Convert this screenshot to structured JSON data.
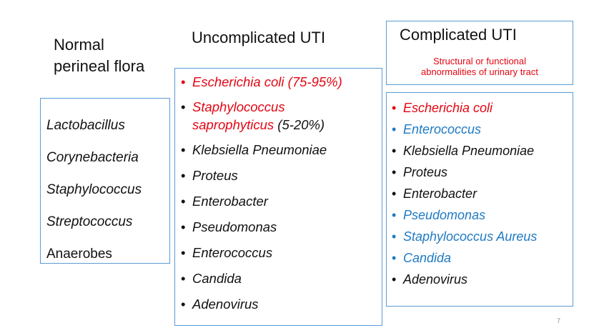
{
  "normal_flora": {
    "title_line1": "Normal",
    "title_line2": "perineal flora",
    "items": [
      "Lactobacillus",
      "Corynebacteria",
      "Staphylococcus",
      "Streptococcus",
      "Anaerobes"
    ]
  },
  "uncomplicated": {
    "title": "Uncomplicated UTI",
    "item1": "Escherichia coli (75-95%)",
    "item2_line1": "Staphylococcus",
    "item2_line2": "saprophyticus",
    "item2_pct": "(5-20%)",
    "items": [
      "Klebsiella Pneumoniae",
      "Proteus",
      "Enterobacter",
      "Pseudomonas",
      "Enterococcus",
      "Candida",
      "Adenovirus"
    ]
  },
  "complicated": {
    "title": "Complicated UTI",
    "subtitle_line1": "Structural or functional",
    "subtitle_line2": "abnormalities of urinary tract",
    "items": [
      "Escherichia coli",
      "Enterococcus",
      "Klebsiella Pneumoniae",
      "Proteus",
      "Enterobacter",
      "Pseudomonas",
      "Staphylococcus Aureus",
      "Candida",
      "Adenovirus"
    ]
  },
  "page_number": "7",
  "colors": {
    "border": "#5b9bd5",
    "red": "#e30613",
    "blue": "#1f7ac3"
  }
}
